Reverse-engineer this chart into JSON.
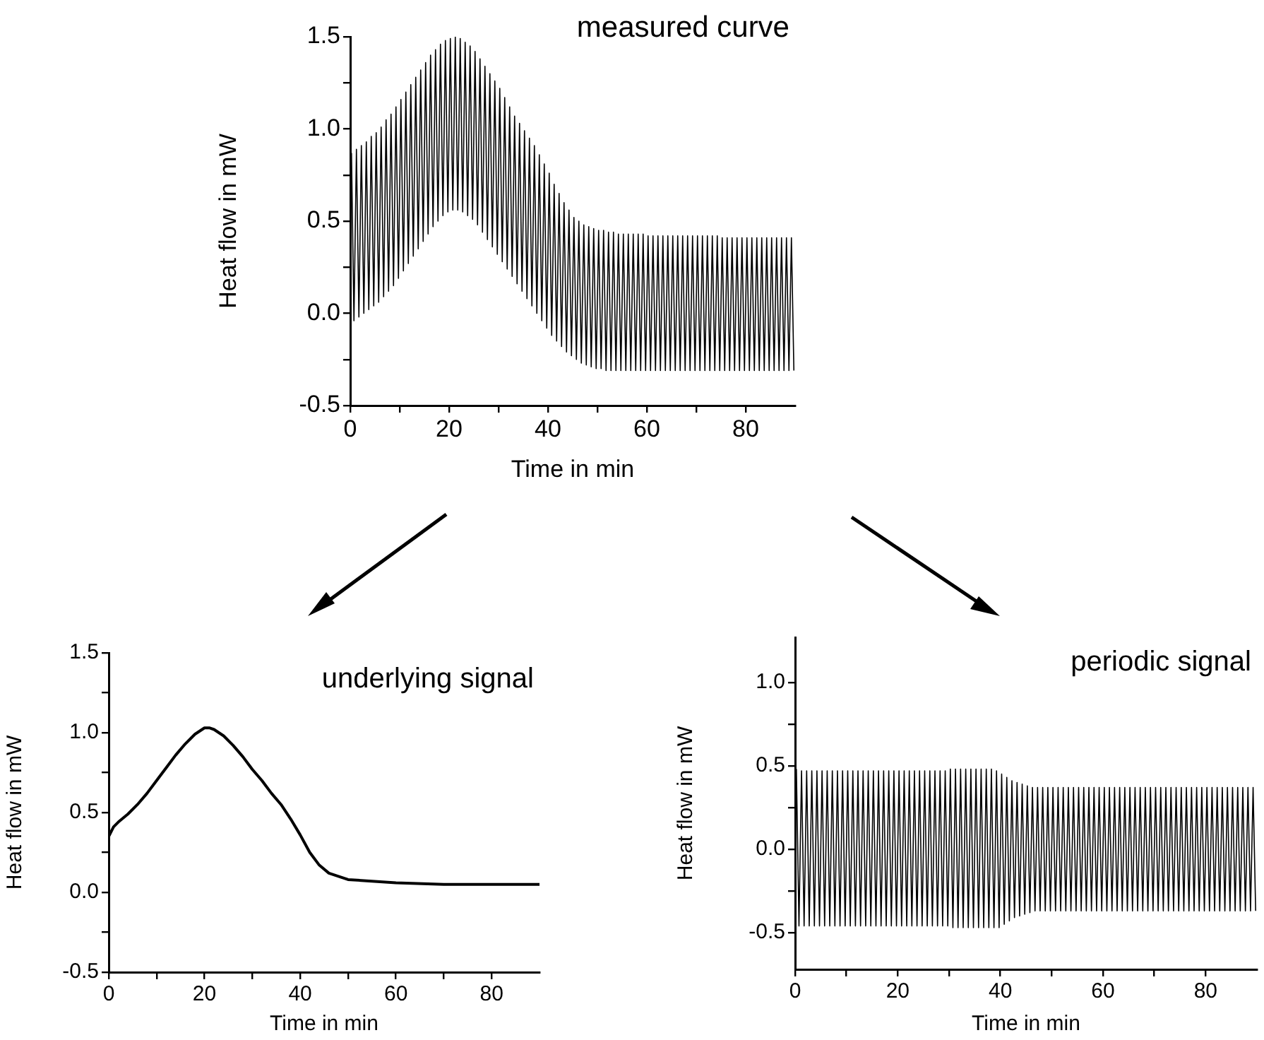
{
  "chart_data": [
    {
      "type": "line",
      "title": "measured curve",
      "xlabel": "Time in min",
      "ylabel": "Heat flow in mW",
      "xlim": [
        0,
        90
      ],
      "ylim": [
        -0.5,
        1.5
      ],
      "xticks": [
        0,
        {
          "value": 10,
          "label": null
        },
        20,
        {
          "value": 30,
          "label": null
        },
        40,
        {
          "value": 50,
          "label": null
        },
        60,
        {
          "value": 70,
          "label": null
        },
        80
      ],
      "yticks": [
        -0.5,
        {
          "value": -0.25,
          "label": null
        },
        {
          "value": 0,
          "label": "0.0"
        },
        {
          "value": 0.25,
          "label": null
        },
        0.5,
        {
          "value": 0.75,
          "label": null
        },
        {
          "value": 1,
          "label": "1.0"
        },
        {
          "value": 1.25,
          "label": null
        },
        1.5
      ],
      "x": [
        0.25,
        0.75,
        1.25,
        1.75,
        2.25,
        2.75,
        3.25,
        3.75,
        4.25,
        4.75,
        5.25,
        5.75,
        6.25,
        6.75,
        7.25,
        7.75,
        8.25,
        8.75,
        9.25,
        9.75,
        10.25,
        10.75,
        11.25,
        11.75,
        12.25,
        12.75,
        13.25,
        13.75,
        14.25,
        14.75,
        15.25,
        15.75,
        16.25,
        16.75,
        17.25,
        17.75,
        18.25,
        18.75,
        19.25,
        19.75,
        20.25,
        20.75,
        21.25,
        21.75,
        22.25,
        22.75,
        23.25,
        23.75,
        24.25,
        24.75,
        25.25,
        25.75,
        26.25,
        26.75,
        27.25,
        27.75,
        28.25,
        28.75,
        29.25,
        29.75,
        30.25,
        30.75,
        31.25,
        31.75,
        32.25,
        32.75,
        33.25,
        33.75,
        34.25,
        34.75,
        35.25,
        35.75,
        36.25,
        36.75,
        37.25,
        37.75,
        38.25,
        38.75,
        39.25,
        39.75,
        40.25,
        40.75,
        41.25,
        41.75,
        42.25,
        42.75,
        43.25,
        43.75,
        44.25,
        44.75,
        45.25,
        45.75,
        46.25,
        46.75,
        47.25,
        47.75,
        48.25,
        48.75,
        49.25,
        49.75,
        50.25,
        50.75,
        51.25,
        51.75,
        52.25,
        52.75,
        53.25,
        53.75,
        54.25,
        54.75,
        55.25,
        55.75,
        56.25,
        56.75,
        57.25,
        57.75,
        58.25,
        58.75,
        59.25,
        59.75,
        60.25,
        60.75,
        61.25,
        61.75,
        62.25,
        62.75,
        63.25,
        63.75,
        64.25,
        64.75,
        65.25,
        65.75,
        66.25,
        66.75,
        67.25,
        67.75,
        68.25,
        68.75,
        69.25,
        69.75,
        70.25,
        70.75,
        71.25,
        71.75,
        72.25,
        72.75,
        73.25,
        73.75,
        74.25,
        74.75,
        75.25,
        75.75,
        76.25,
        76.75,
        77.25,
        77.75,
        78.25,
        78.75,
        79.25,
        79.75,
        80.25,
        80.75,
        81.25,
        81.75,
        82.25,
        82.75,
        83.25,
        83.75,
        84.25,
        84.75,
        85.25,
        85.75,
        86.25,
        86.75,
        87.25,
        87.75,
        88.25,
        88.75,
        89.25,
        89.75
      ],
      "series": [
        {
          "color": "#000000",
          "values": [
            0.87,
            -0.04,
            0.89,
            -0.02,
            0.91,
            0,
            0.93,
            0.02,
            0.96,
            0.04,
            0.98,
            0.06,
            1.01,
            0.09,
            1.05,
            0.12,
            1.08,
            0.15,
            1.12,
            0.19,
            1.16,
            0.23,
            1.2,
            0.27,
            1.24,
            0.31,
            1.28,
            0.35,
            1.32,
            0.39,
            1.36,
            0.43,
            1.4,
            0.47,
            1.43,
            0.5,
            1.46,
            0.53,
            1.48,
            0.55,
            1.49,
            0.56,
            1.5,
            0.56,
            1.49,
            0.55,
            1.47,
            0.53,
            1.45,
            0.51,
            1.42,
            0.48,
            1.38,
            0.44,
            1.34,
            0.4,
            1.3,
            0.36,
            1.26,
            0.32,
            1.22,
            0.28,
            1.17,
            0.24,
            1.12,
            0.2,
            1.07,
            0.16,
            1.03,
            0.12,
            0.99,
            0.08,
            0.95,
            0.04,
            0.91,
            0,
            0.86,
            -0.04,
            0.81,
            -0.08,
            0.76,
            -0.12,
            0.7,
            -0.15,
            0.65,
            -0.18,
            0.6,
            -0.21,
            0.56,
            -0.23,
            0.52,
            -0.25,
            0.5,
            -0.27,
            0.48,
            -0.28,
            0.47,
            -0.29,
            0.46,
            -0.3,
            0.45,
            -0.3,
            0.45,
            -0.31,
            0.44,
            -0.31,
            0.44,
            -0.31,
            0.43,
            -0.31,
            0.43,
            -0.31,
            0.43,
            -0.31,
            0.43,
            -0.31,
            0.43,
            -0.31,
            0.43,
            -0.31,
            0.42,
            -0.31,
            0.42,
            -0.31,
            0.42,
            -0.31,
            0.42,
            -0.31,
            0.42,
            -0.31,
            0.42,
            -0.31,
            0.42,
            -0.31,
            0.42,
            -0.31,
            0.42,
            -0.31,
            0.42,
            -0.31,
            0.42,
            -0.31,
            0.42,
            -0.31,
            0.42,
            -0.31,
            0.42,
            -0.31,
            0.42,
            -0.31,
            0.41,
            -0.31,
            0.41,
            -0.31,
            0.41,
            -0.31,
            0.41,
            -0.31,
            0.41,
            -0.31,
            0.41,
            -0.31,
            0.41,
            -0.31,
            0.41,
            -0.31,
            0.41,
            -0.31,
            0.41,
            -0.31,
            0.41,
            -0.31,
            0.41,
            -0.31,
            0.41,
            -0.31,
            0.41,
            -0.31,
            0.41,
            -0.31
          ]
        }
      ]
    },
    {
      "type": "line",
      "title": "underlying signal",
      "xlabel": "Time in min",
      "ylabel": "Heat flow in mW",
      "xlim": [
        0,
        90
      ],
      "ylim": [
        -0.5,
        1.5
      ],
      "xticks": [
        0,
        {
          "value": 10,
          "label": null
        },
        20,
        {
          "value": 30,
          "label": null
        },
        40,
        {
          "value": 50,
          "label": null
        },
        60,
        {
          "value": 70,
          "label": null
        },
        80
      ],
      "yticks": [
        -0.5,
        {
          "value": -0.25,
          "label": null
        },
        {
          "value": 0,
          "label": "0.0"
        },
        {
          "value": 0.25,
          "label": null
        },
        0.5,
        {
          "value": 0.75,
          "label": null
        },
        {
          "value": 1,
          "label": "1.0"
        },
        {
          "value": 1.25,
          "label": null
        },
        1.5
      ],
      "x": [
        0,
        1,
        2,
        4,
        6,
        8,
        10,
        12,
        14,
        16,
        18,
        20,
        21,
        22,
        24,
        26,
        28,
        30,
        32,
        34,
        36,
        38,
        40,
        42,
        44,
        46,
        48,
        50,
        55,
        60,
        70,
        80,
        90
      ],
      "series": [
        {
          "color": "#000000",
          "values": [
            0.35,
            0.41,
            0.44,
            0.49,
            0.55,
            0.62,
            0.7,
            0.78,
            0.86,
            0.93,
            0.99,
            1.03,
            1.03,
            1.02,
            0.98,
            0.92,
            0.85,
            0.77,
            0.7,
            0.62,
            0.55,
            0.46,
            0.36,
            0.25,
            0.17,
            0.12,
            0.1,
            0.08,
            0.07,
            0.06,
            0.05,
            0.05,
            0.05
          ]
        }
      ]
    },
    {
      "type": "line",
      "title": "periodic signal",
      "xlabel": "Time in min",
      "ylabel": "Heat flow in mW",
      "xlim": [
        0,
        90
      ],
      "ylim": [
        -0.72,
        1.27
      ],
      "xticks": [
        0,
        {
          "value": 10,
          "label": null
        },
        20,
        {
          "value": 30,
          "label": null
        },
        40,
        {
          "value": 50,
          "label": null
        },
        60,
        {
          "value": 70,
          "label": null
        },
        80
      ],
      "yticks": [
        -0.5,
        {
          "value": -0.25,
          "label": null
        },
        {
          "value": 0,
          "label": "0.0"
        },
        {
          "value": 0.25,
          "label": null
        },
        0.5,
        {
          "value": 0.75,
          "label": null
        },
        {
          "value": 1,
          "label": "1.0"
        }
      ],
      "x": [
        0.25,
        0.75,
        1.25,
        1.75,
        2.25,
        2.75,
        3.25,
        3.75,
        4.25,
        4.75,
        5.25,
        5.75,
        6.25,
        6.75,
        7.25,
        7.75,
        8.25,
        8.75,
        9.25,
        9.75,
        10.25,
        10.75,
        11.25,
        11.75,
        12.25,
        12.75,
        13.25,
        13.75,
        14.25,
        14.75,
        15.25,
        15.75,
        16.25,
        16.75,
        17.25,
        17.75,
        18.25,
        18.75,
        19.25,
        19.75,
        20.25,
        20.75,
        21.25,
        21.75,
        22.25,
        22.75,
        23.25,
        23.75,
        24.25,
        24.75,
        25.25,
        25.75,
        26.25,
        26.75,
        27.25,
        27.75,
        28.25,
        28.75,
        29.25,
        29.75,
        30.25,
        30.75,
        31.25,
        31.75,
        32.25,
        32.75,
        33.25,
        33.75,
        34.25,
        34.75,
        35.25,
        35.75,
        36.25,
        36.75,
        37.25,
        37.75,
        38.25,
        38.75,
        39.25,
        39.75,
        40.25,
        40.75,
        41.25,
        41.75,
        42.25,
        42.75,
        43.25,
        43.75,
        44.25,
        44.75,
        45.25,
        45.75,
        46.25,
        46.75,
        47.25,
        47.75,
        48.25,
        48.75,
        49.25,
        49.75,
        50.25,
        50.75,
        51.25,
        51.75,
        52.25,
        52.75,
        53.25,
        53.75,
        54.25,
        54.75,
        55.25,
        55.75,
        56.25,
        56.75,
        57.25,
        57.75,
        58.25,
        58.75,
        59.25,
        59.75,
        60.25,
        60.75,
        61.25,
        61.75,
        62.25,
        62.75,
        63.25,
        63.75,
        64.25,
        64.75,
        65.25,
        65.75,
        66.25,
        66.75,
        67.25,
        67.75,
        68.25,
        68.75,
        69.25,
        69.75,
        70.25,
        70.75,
        71.25,
        71.75,
        72.25,
        72.75,
        73.25,
        73.75,
        74.25,
        74.75,
        75.25,
        75.75,
        76.25,
        76.75,
        77.25,
        77.75,
        78.25,
        78.75,
        79.25,
        79.75,
        80.25,
        80.75,
        81.25,
        81.75,
        82.25,
        82.75,
        83.25,
        83.75,
        84.25,
        84.75,
        85.25,
        85.75,
        86.25,
        86.75,
        87.25,
        87.75,
        88.25,
        88.75,
        89.25,
        89.75
      ],
      "series": [
        {
          "color": "#000000",
          "values": [
            0.48,
            -0.46,
            0.47,
            -0.46,
            0.47,
            -0.46,
            0.47,
            -0.46,
            0.47,
            -0.46,
            0.47,
            -0.46,
            0.47,
            -0.46,
            0.47,
            -0.46,
            0.47,
            -0.46,
            0.47,
            -0.46,
            0.47,
            -0.46,
            0.47,
            -0.46,
            0.47,
            -0.46,
            0.47,
            -0.46,
            0.47,
            -0.46,
            0.47,
            -0.46,
            0.47,
            -0.46,
            0.47,
            -0.46,
            0.47,
            -0.46,
            0.47,
            -0.46,
            0.47,
            -0.46,
            0.47,
            -0.46,
            0.47,
            -0.46,
            0.47,
            -0.46,
            0.47,
            -0.46,
            0.47,
            -0.46,
            0.47,
            -0.46,
            0.47,
            -0.46,
            0.47,
            -0.46,
            0.47,
            -0.46,
            0.48,
            -0.47,
            0.48,
            -0.47,
            0.48,
            -0.47,
            0.48,
            -0.47,
            0.48,
            -0.47,
            0.48,
            -0.47,
            0.48,
            -0.47,
            0.48,
            -0.47,
            0.48,
            -0.47,
            0.47,
            -0.47,
            0.45,
            -0.45,
            0.43,
            -0.43,
            0.41,
            -0.41,
            0.4,
            -0.4,
            0.39,
            -0.39,
            0.38,
            -0.38,
            0.37,
            -0.37,
            0.37,
            -0.37,
            0.37,
            -0.37,
            0.37,
            -0.37,
            0.37,
            -0.37,
            0.37,
            -0.37,
            0.37,
            -0.37,
            0.37,
            -0.37,
            0.37,
            -0.37,
            0.37,
            -0.37,
            0.37,
            -0.37,
            0.37,
            -0.37,
            0.37,
            -0.37,
            0.37,
            -0.37,
            0.37,
            -0.37,
            0.37,
            -0.37,
            0.37,
            -0.37,
            0.37,
            -0.37,
            0.37,
            -0.37,
            0.37,
            -0.37,
            0.37,
            -0.37,
            0.37,
            -0.37,
            0.37,
            -0.37,
            0.37,
            -0.37,
            0.37,
            -0.37,
            0.37,
            -0.37,
            0.37,
            -0.37,
            0.37,
            -0.37,
            0.37,
            -0.37,
            0.37,
            -0.37,
            0.37,
            -0.37,
            0.37,
            -0.37,
            0.37,
            -0.37,
            0.37,
            -0.37,
            0.37,
            -0.37,
            0.37,
            -0.37,
            0.37,
            -0.37,
            0.37,
            -0.37,
            0.37,
            -0.37,
            0.37,
            -0.37,
            0.37,
            -0.37,
            0.37,
            -0.37,
            0.37,
            -0.37,
            0.37,
            -0.37
          ]
        }
      ]
    }
  ]
}
